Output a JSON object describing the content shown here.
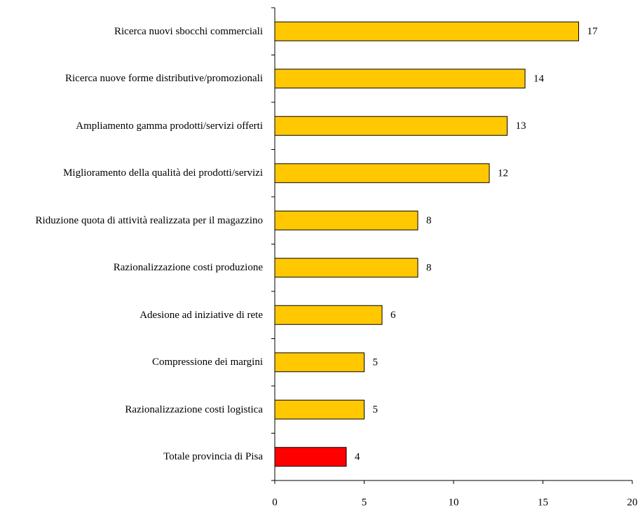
{
  "chart_data": {
    "type": "barh",
    "categories": [
      "Ricerca nuovi sbocchi commerciali",
      "Ricerca nuove forme distributive/promozionali",
      "Ampliamento gamma prodotti/servizi offerti",
      "Miglioramento della qualità dei prodotti/servizi",
      "Riduzione quota di attività realizzata per il magazzino",
      "Razionalizzazione costi produzione",
      "Adesione ad iniziative di rete",
      "Compressione dei margini",
      "Razionalizzazione costi logistica",
      "Totale provincia di Pisa"
    ],
    "values": [
      17,
      14,
      13,
      12,
      8,
      8,
      6,
      5,
      5,
      4
    ],
    "colors": [
      "#ffc800",
      "#ffc800",
      "#ffc800",
      "#ffc800",
      "#ffc800",
      "#ffc800",
      "#ffc800",
      "#ffc800",
      "#ffc800",
      "#ff0000"
    ],
    "xlim": [
      0,
      20
    ],
    "xticks": [
      0,
      5,
      10,
      15,
      20
    ],
    "grid": false
  }
}
